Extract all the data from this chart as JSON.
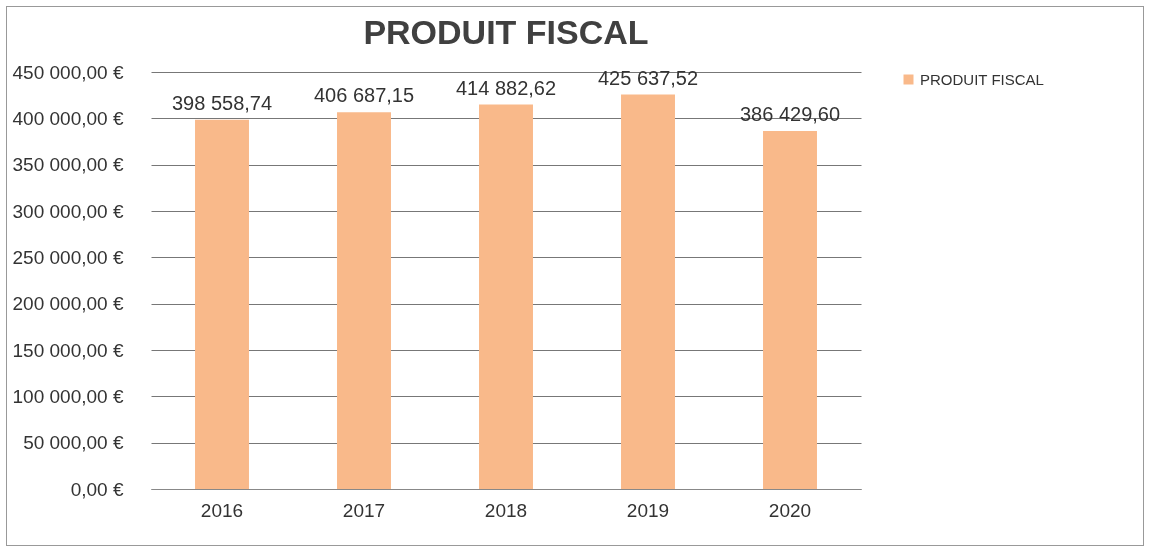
{
  "chart_data": {
    "type": "bar",
    "title": "PRODUIT FISCAL",
    "categories": [
      "2016",
      "2017",
      "2018",
      "2019",
      "2020"
    ],
    "series": [
      {
        "name": "PRODUIT FISCAL",
        "color": "#f9b98a",
        "values": [
          398558.74,
          406687.15,
          414882.62,
          425637.52,
          386429.6
        ],
        "value_labels": [
          "398 558,74",
          "406 687,15",
          "414 882,62",
          "425 637,52",
          "386 429,60"
        ]
      }
    ],
    "ylim": [
      0,
      450000
    ],
    "yticks": [
      {
        "value": 0,
        "label": "0,00 €"
      },
      {
        "value": 50000,
        "label": "50 000,00 €"
      },
      {
        "value": 100000,
        "label": "100 000,00 €"
      },
      {
        "value": 150000,
        "label": "150 000,00 €"
      },
      {
        "value": 200000,
        "label": "200 000,00 €"
      },
      {
        "value": 250000,
        "label": "250 000,00 €"
      },
      {
        "value": 300000,
        "label": "300 000,00 €"
      },
      {
        "value": 350000,
        "label": "350 000,00 €"
      },
      {
        "value": 400000,
        "label": "400 000,00 €"
      },
      {
        "value": 450000,
        "label": "450 000,00 €"
      }
    ],
    "grid": "y",
    "legend": "right"
  }
}
